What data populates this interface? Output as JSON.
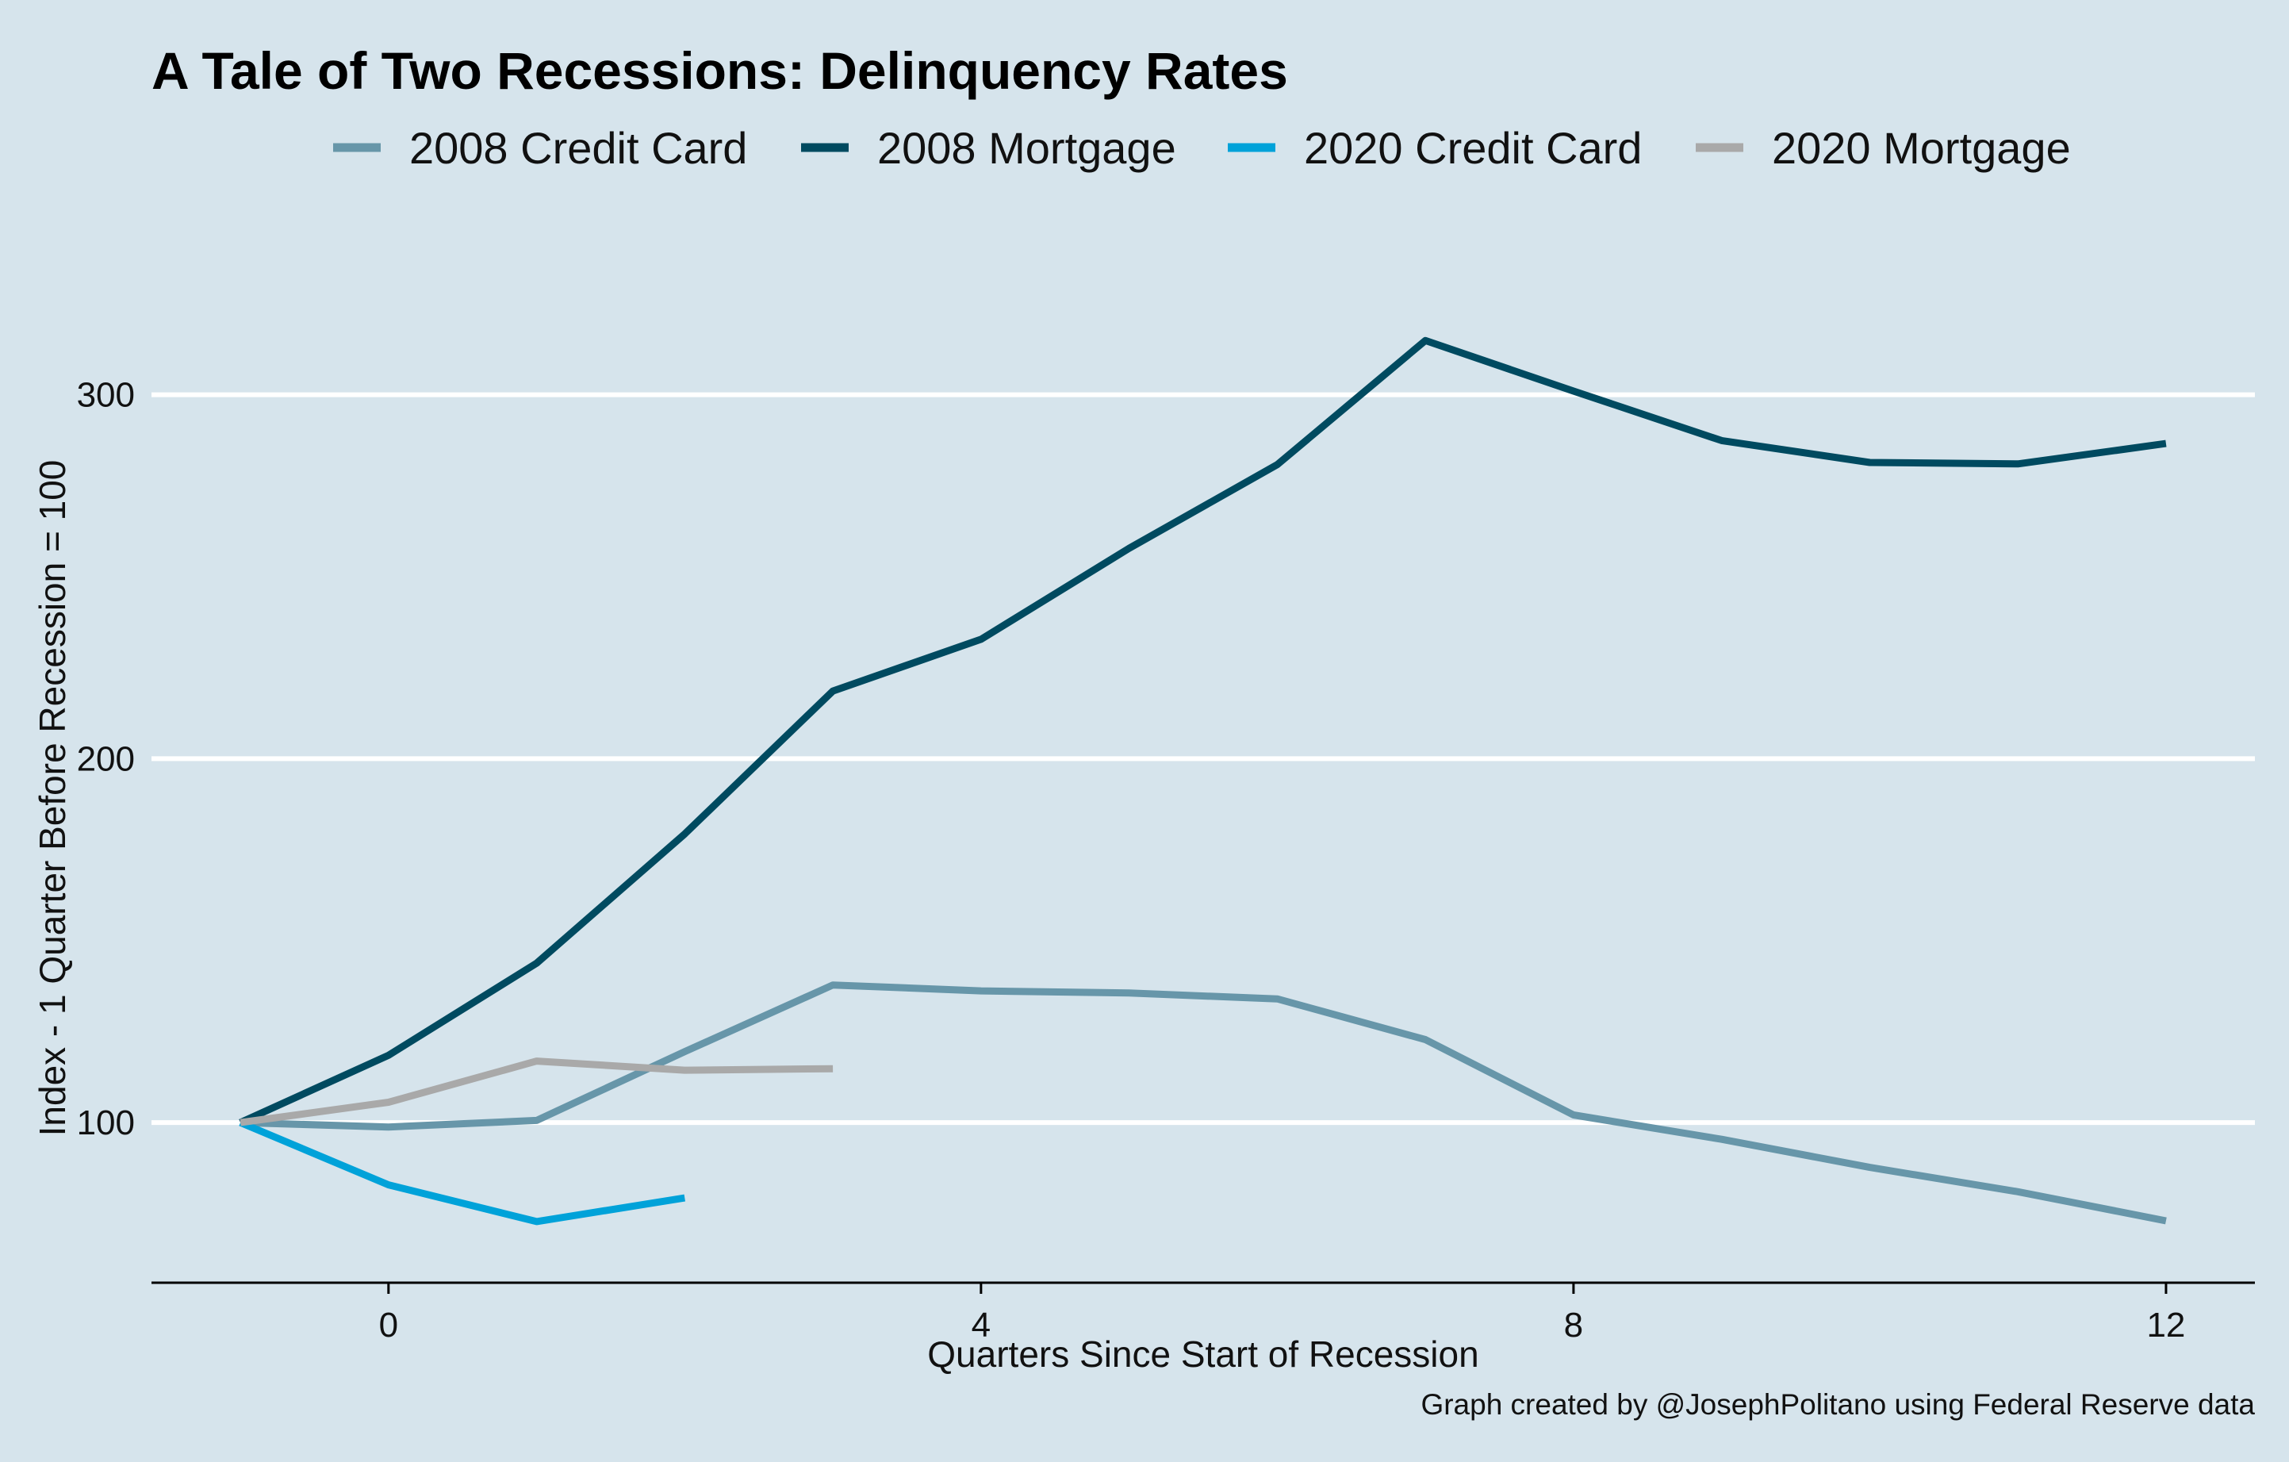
{
  "chart_data": {
    "type": "line",
    "title": "A Tale of Two Recessions: Delinquency Rates",
    "xlabel": "Quarters Since Start of Recession",
    "ylabel": "Index - 1 Quarter Before Recession = 100",
    "caption": "Graph created by @JosephPolitano using Federal Reserve data",
    "xlim": [
      -1.6,
      12.6
    ],
    "ylim": [
      56,
      330
    ],
    "x_ticks": [
      0,
      4,
      8,
      12
    ],
    "y_ticks": [
      100,
      200,
      300
    ],
    "grid": "horizontal",
    "legend_position": "top",
    "series": [
      {
        "name": "2008 Credit Card",
        "color": "#6796a9",
        "x": [
          -1,
          0,
          1,
          2,
          3,
          4,
          5,
          6,
          7,
          8,
          9,
          10,
          11,
          12
        ],
        "values": [
          100,
          98.8,
          100.6,
          119.5,
          137.8,
          136.2,
          135.6,
          134,
          122.8,
          102.1,
          95.4,
          87.7,
          81,
          73
        ]
      },
      {
        "name": "2008 Mortgage",
        "color": "#004a60",
        "x": [
          -1,
          0,
          1,
          2,
          3,
          4,
          5,
          6,
          7,
          8,
          9,
          10,
          11,
          12
        ],
        "values": [
          100,
          118.5,
          143.8,
          179.3,
          218.6,
          232.8,
          257.8,
          280.8,
          314.9,
          301,
          287.4,
          281.4,
          281,
          286.6
        ]
      },
      {
        "name": "2020 Credit Card",
        "color": "#00a2d9",
        "x": [
          -1,
          0,
          1,
          2
        ],
        "values": [
          100,
          82.9,
          72.8,
          79.3
        ]
      },
      {
        "name": "2020 Mortgage",
        "color": "#a9a9a9",
        "x": [
          -1,
          0,
          1,
          2,
          3
        ],
        "values": [
          100,
          105.6,
          116.9,
          114.4,
          114.8
        ]
      }
    ]
  }
}
